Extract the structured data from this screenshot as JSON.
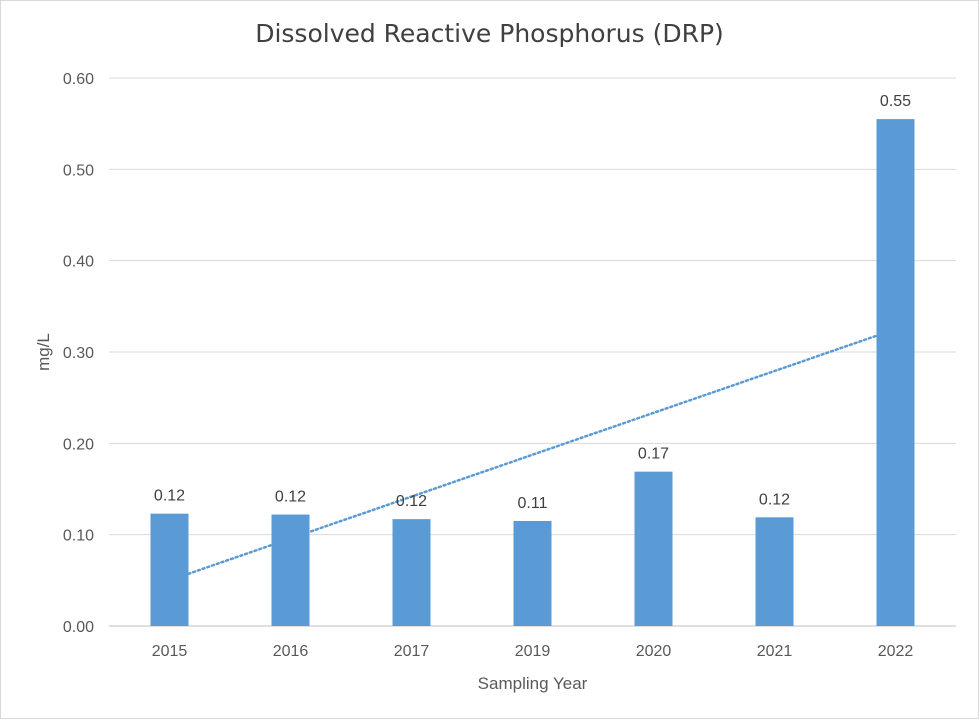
{
  "chart_data": {
    "type": "bar",
    "title": "Dissolved Reactive Phosphorus (DRP)",
    "xlabel": "Sampling Year",
    "ylabel": "mg/L",
    "categories": [
      "2015",
      "2016",
      "2017",
      "2019",
      "2020",
      "2021",
      "2022"
    ],
    "series": [
      {
        "values": [
          0.123,
          0.122,
          0.117,
          0.115,
          0.169,
          0.119,
          0.555
        ],
        "data_labels": [
          "0.12",
          "0.12",
          "0.12",
          "0.11",
          "0.17",
          "0.12",
          "0.55"
        ],
        "color": "#5b9bd5"
      }
    ],
    "trendline": {
      "type": "linear",
      "style": "dotted",
      "color": "#5b9bd5",
      "start_value": 0.05,
      "end_value": 0.325
    },
    "ylim": [
      0,
      0.6
    ],
    "yticks": [
      0,
      0.1,
      0.2,
      0.3,
      0.4,
      0.5,
      0.6
    ],
    "ytick_labels": [
      "0.00",
      "0.10",
      "0.20",
      "0.30",
      "0.40",
      "0.50",
      "0.60"
    ],
    "grid": true,
    "legend": "none"
  }
}
